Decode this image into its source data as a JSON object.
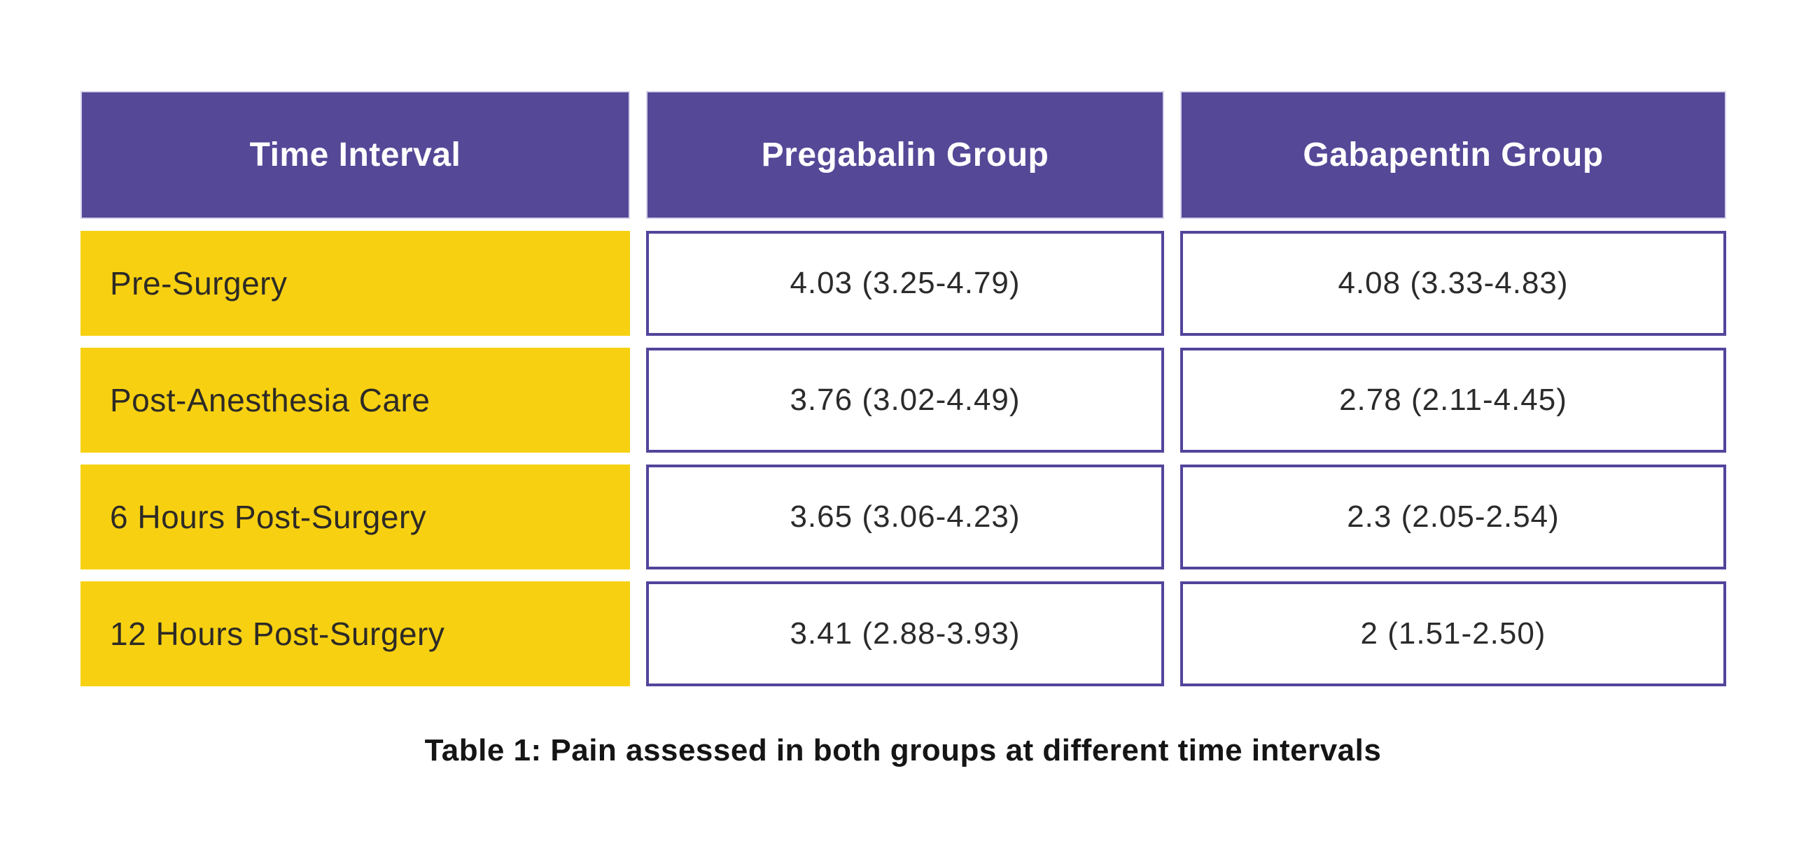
{
  "colors": {
    "header_bg": "#544897",
    "header_text": "#ffffff",
    "row_label_bg": "#f7d111",
    "row_label_text": "#2d2a26",
    "cell_border": "#52459b",
    "cell_bg": "#ffffff",
    "cell_text": "#2b2b2b",
    "caption_text": "#151515",
    "page_bg": "#ffffff"
  },
  "table": {
    "columns": {
      "time_interval": "Time Interval",
      "pregabalin": "Pregabalin Group",
      "gabapentin": "Gabapentin Group"
    },
    "rows": [
      {
        "label": "Pre-Surgery",
        "pregabalin": "4.03 (3.25-4.79)",
        "gabapentin": "4.08 (3.33-4.83)"
      },
      {
        "label": "Post-Anesthesia Care",
        "pregabalin": "3.76 (3.02-4.49)",
        "gabapentin": "2.78 (2.11-4.45)"
      },
      {
        "label": "6 Hours Post-Surgery",
        "pregabalin": "3.65 (3.06-4.23)",
        "gabapentin": "2.3 (2.05-2.54)"
      },
      {
        "label": "12 Hours Post-Surgery",
        "pregabalin": "3.41 (2.88-3.93)",
        "gabapentin": "2 (1.51-2.50)"
      }
    ],
    "caption": "Table 1: Pain assessed in both groups at different time intervals"
  },
  "chart_data": {
    "type": "table",
    "title": "Table 1: Pain assessed in both groups at different time intervals",
    "columns": [
      "Time Interval",
      "Pregabalin Group",
      "Gabapentin Group"
    ],
    "rows": [
      [
        "Pre-Surgery",
        "4.03 (3.25-4.79)",
        "4.08 (3.33-4.83)"
      ],
      [
        "Post-Anesthesia Care",
        "3.76 (3.02-4.49)",
        "2.78 (2.11-4.45)"
      ],
      [
        "6 Hours Post-Surgery",
        "3.65 (3.06-4.23)",
        "2.3 (2.05-2.54)"
      ],
      [
        "12 Hours Post-Surgery",
        "3.41 (2.88-3.93)",
        "2 (1.51-2.50)"
      ]
    ],
    "series": [
      {
        "name": "Pregabalin Group",
        "median": [
          4.03,
          3.76,
          3.65,
          3.41
        ],
        "range_low": [
          3.25,
          3.02,
          3.06,
          2.88
        ],
        "range_high": [
          4.79,
          4.49,
          4.23,
          3.93
        ]
      },
      {
        "name": "Gabapentin Group",
        "median": [
          4.08,
          2.78,
          2.3,
          2.0
        ],
        "range_low": [
          3.33,
          2.11,
          2.05,
          1.51
        ],
        "range_high": [
          4.83,
          4.45,
          2.54,
          2.5
        ]
      }
    ],
    "categories": [
      "Pre-Surgery",
      "Post-Anesthesia Care",
      "6 Hours Post-Surgery",
      "12 Hours Post-Surgery"
    ]
  }
}
